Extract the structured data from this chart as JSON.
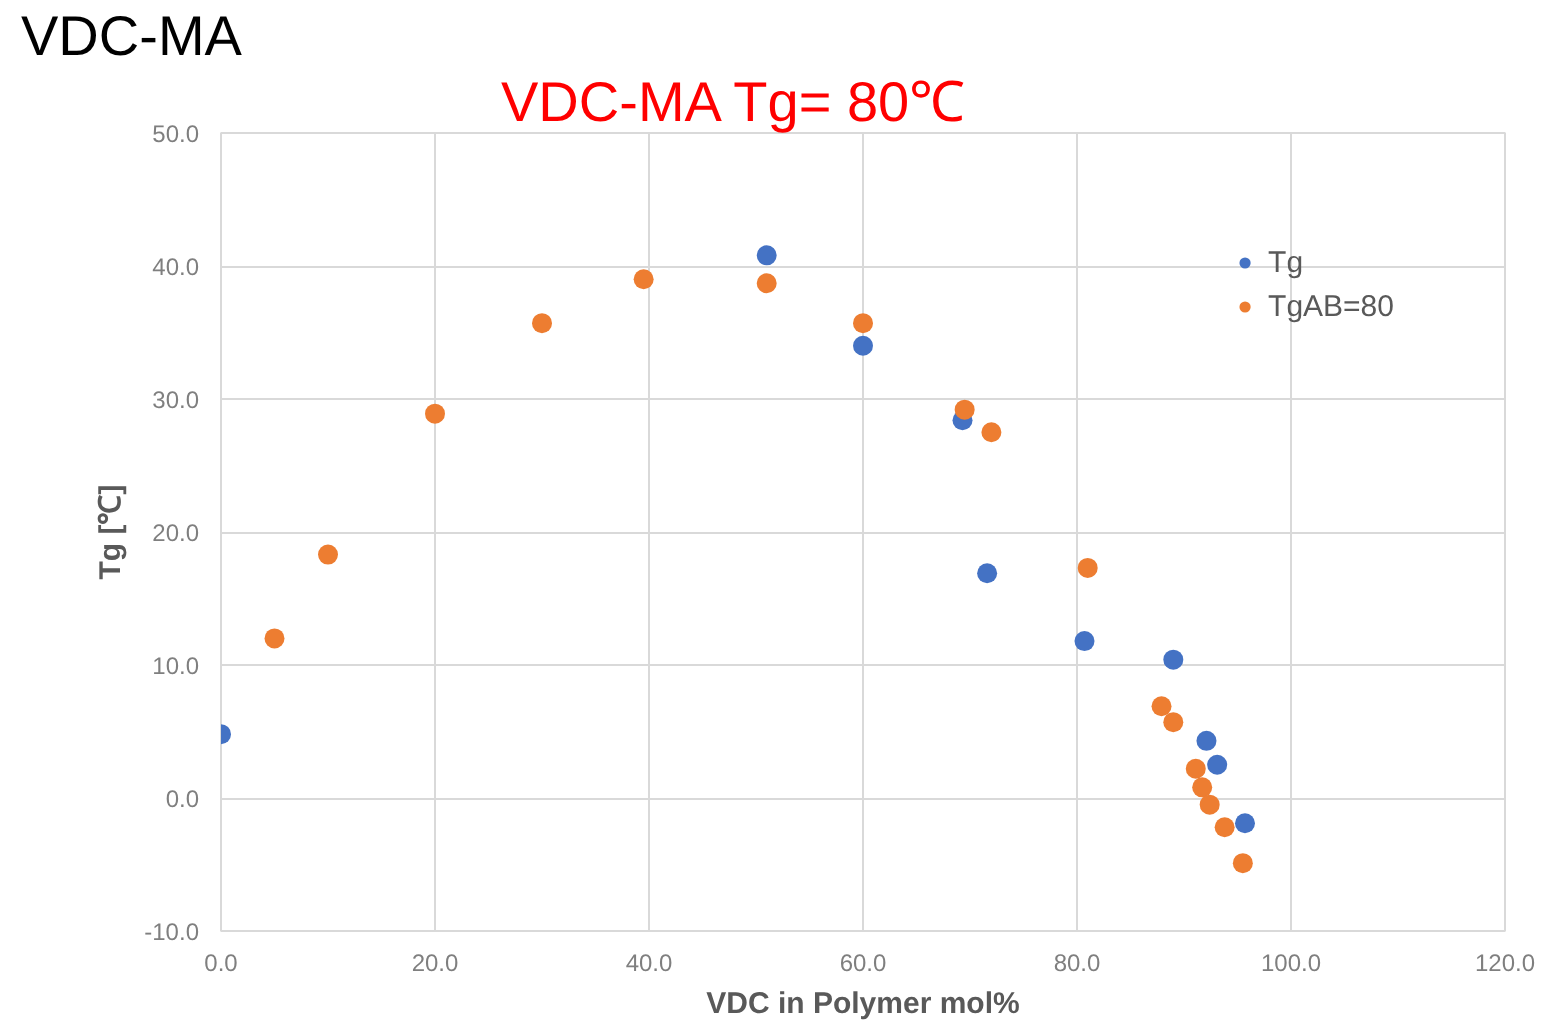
{
  "chart_data": {
    "type": "scatter",
    "title": "VDC-MA",
    "subtitle": "VDC-MA Tg= 80℃",
    "xlabel": "VDC in Polymer mol%",
    "ylabel": "Tg [℃]",
    "xlim": [
      0,
      120
    ],
    "xticks": [
      {
        "value": 0,
        "label": "0.0"
      },
      {
        "value": 20,
        "label": "20.0"
      },
      {
        "value": 40,
        "label": "40.0"
      },
      {
        "value": 60,
        "label": "60.0"
      },
      {
        "value": 80,
        "label": "80.0"
      },
      {
        "value": 100,
        "label": "100.0"
      },
      {
        "value": 120,
        "label": "120.0"
      }
    ],
    "ylim": [
      -10,
      50
    ],
    "yticks": [
      {
        "value": -10,
        "label": "-10.0"
      },
      {
        "value": 0,
        "label": "0.0"
      },
      {
        "value": 10,
        "label": "10.0"
      },
      {
        "value": 20,
        "label": "20.0"
      },
      {
        "value": 30,
        "label": "30.0"
      },
      {
        "value": 40,
        "label": "40.0"
      },
      {
        "value": 50,
        "label": "50.0"
      }
    ],
    "grid": true,
    "legend": "top right",
    "marker": "circle",
    "series": [
      {
        "name": "Tg",
        "color": "#4472c4",
        "x": [
          0,
          51,
          60,
          69.3,
          71.6,
          80.7,
          89,
          92.1,
          93.1,
          95.7
        ],
        "values": [
          4.8,
          40.8,
          34,
          28.4,
          16.9,
          11.8,
          10.4,
          4.3,
          2.5,
          -1.9
        ]
      },
      {
        "name": "TgAB=80",
        "color": "#ed7d31",
        "x": [
          5,
          10,
          20,
          30,
          39.5,
          51,
          60,
          69.5,
          72,
          81,
          87.9,
          89,
          91.1,
          91.7,
          92.4,
          93.8,
          95.5
        ],
        "values": [
          12,
          18.3,
          28.9,
          35.7,
          39,
          38.7,
          35.7,
          29.2,
          27.5,
          17.3,
          6.9,
          5.7,
          2.2,
          0.8,
          -0.5,
          -2.2,
          -4.9
        ]
      }
    ]
  }
}
